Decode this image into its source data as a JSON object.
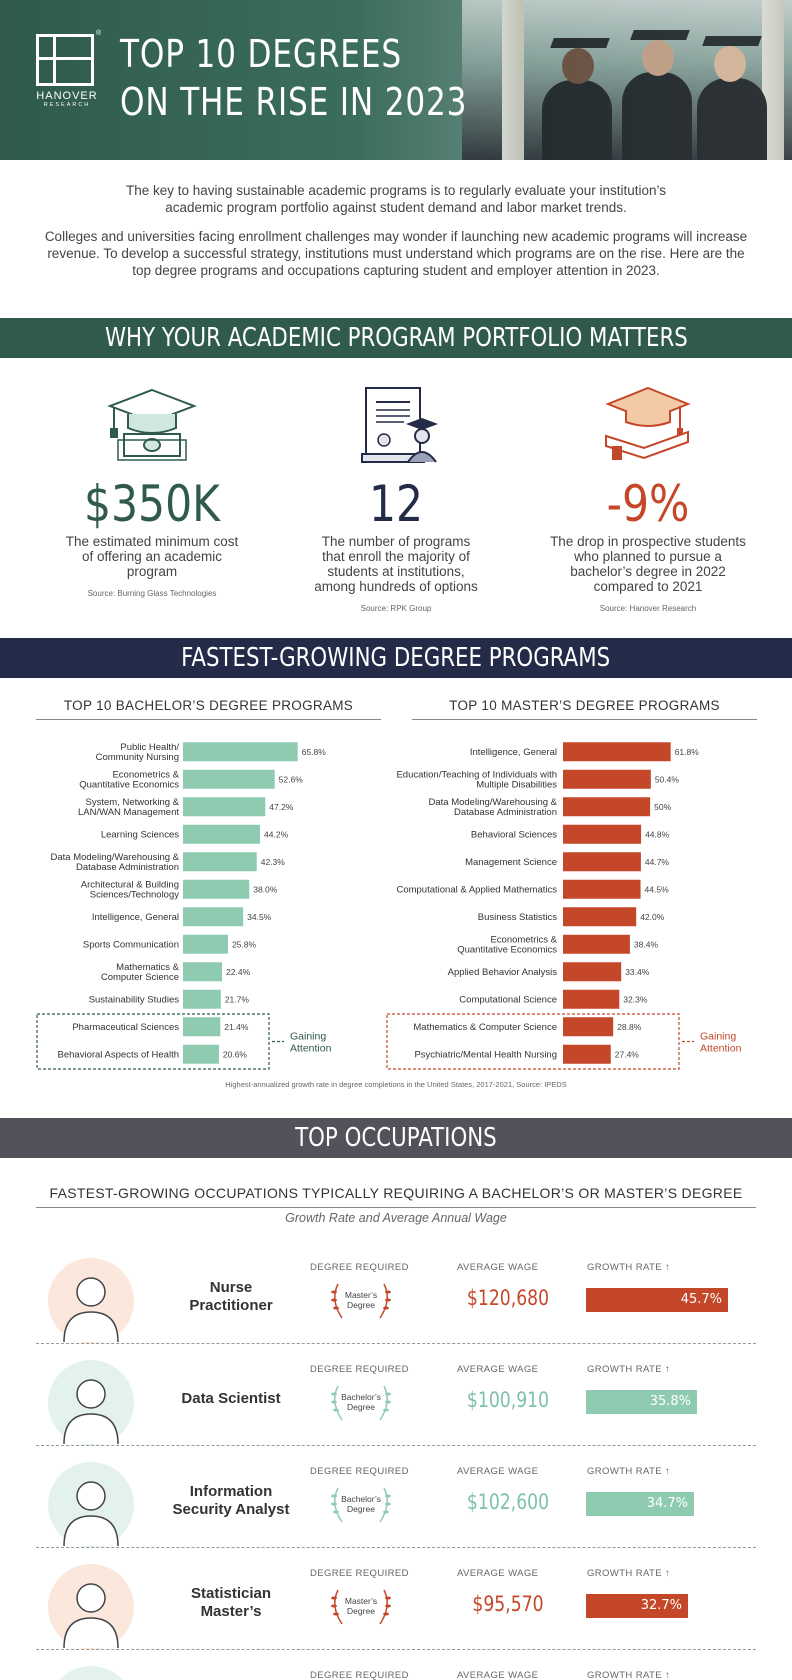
{
  "header": {
    "title_line1": "TOP 10 DEGREES",
    "title_line2": "ON THE RISE IN 2023",
    "logo_name": "HANOVER",
    "logo_sub": "RESEARCH",
    "logo_reg": "®"
  },
  "intro": {
    "p1": "The key to having sustainable academic programs is to regularly evaluate your institution’s academic program portfolio against student demand and labor market trends.",
    "p2": "Colleges and universities facing enrollment challenges may wonder if launching new academic programs will increase revenue. To develop a successful strategy, institutions must understand which programs are on the rise. Here are the top degree programs and occupations capturing student and employer attention in 2023."
  },
  "sections": {
    "why": "WHY YOUR ACADEMIC PROGRAM PORTFOLIO MATTERS",
    "fastest": "FASTEST-GROWING DEGREE PROGRAMS",
    "occupations": "TOP OCCUPATIONS"
  },
  "stats": [
    {
      "value": "$350K",
      "desc": "The estimated minimum cost of offering an academic program",
      "source": "Source: Burning Glass Technologies",
      "color": "#2f5a4d",
      "icon": "graduation-cap-money-icon"
    },
    {
      "value": "12",
      "desc": "The number of programs that enroll the majority of students at institutions, among hundreds of options",
      "source": "Source: RPK Group",
      "color": "#242b49",
      "icon": "diploma-graduate-icon"
    },
    {
      "value": "-9%",
      "desc": "The drop in prospective students who planned to pursue a bachelor’s degree in 2022 compared to 2021",
      "source": "Source: Hanover Research",
      "color": "#c5472a",
      "icon": "cap-on-book-icon"
    }
  ],
  "chart_data": [
    {
      "type": "bar",
      "title": "TOP 10 BACHELOR’S DEGREE PROGRAMS",
      "orientation": "horizontal",
      "color": "#8ecbb1",
      "categories": [
        "Public Health/|Community Nursing",
        "Econometrics &|Quantitative Economics",
        "System, Networking &|LAN/WAN Management",
        "Learning Sciences",
        "Data Modeling/Warehousing &|Database Administration",
        "Architectural & Building|Sciences/Technology",
        "Intelligence, General",
        "Sports Communication",
        "Mathematics &|Computer Science",
        "Sustainability Studies",
        "Pharmaceutical Sciences",
        "Behavioral Aspects of Health"
      ],
      "values": [
        65.8,
        52.6,
        47.2,
        44.2,
        42.3,
        38.0,
        34.5,
        25.8,
        22.4,
        21.7,
        21.4,
        20.6
      ],
      "labels": [
        "65.8%",
        "52.6%",
        "47.2%",
        "44.2%",
        "42.3%",
        "38.0%",
        "34.5%",
        "25.8%",
        "22.4%",
        "21.7%",
        "21.4%",
        "20.6%"
      ],
      "annotation": "Gaining|Attention",
      "annotation_count": 2
    },
    {
      "type": "bar",
      "title": "TOP 10 MASTER’S DEGREE PROGRAMS",
      "orientation": "horizontal",
      "color": "#c5472a",
      "categories": [
        "Intelligence, General",
        "Education/Teaching of Individuals with|Multiple Disabilities",
        "Data Modeling/Warehousing &|Database Administration",
        "Behavioral Sciences",
        "Management Science",
        "Computational & Applied Mathematics",
        "Business Statistics",
        "Econometrics &|Quantitative Economics",
        "Applied Behavior Analysis",
        "Computational Science",
        "Mathematics & Computer Science",
        "Psychiatric/Mental Health Nursing"
      ],
      "values": [
        61.8,
        50.4,
        50,
        44.8,
        44.7,
        44.5,
        42.0,
        38.4,
        33.4,
        32.3,
        28.8,
        27.4
      ],
      "labels": [
        "61.8%",
        "50.4%",
        "50%",
        "44.8%",
        "44.7%",
        "44.5%",
        "42.0%",
        "38.4%",
        "33.4%",
        "32.3%",
        "28.8%",
        "27.4%"
      ],
      "annotation": "Gaining|Attention",
      "annotation_count": 2
    }
  ],
  "chart_footnote": "Highest-annualized growth rate in degree completions in the United States, 2017-2021, Source: IPEDS",
  "occupations": {
    "heading": "FASTEST-GROWING OCCUPATIONS TYPICALLY REQUIRING A BACHELOR’S OR MASTER’S DEGREE",
    "subheading": "Growth Rate and Average Annual Wage",
    "col_degree": "DEGREE REQUIRED",
    "col_wage": "AVERAGE WAGE",
    "col_growth": "GROWTH RATE",
    "growth_max": 45.7,
    "rows": [
      {
        "title": "Nurse Practitioner",
        "degree": "Master’s Degree",
        "wage": "$120,680",
        "growth": 45.7,
        "growth_label": "45.7%",
        "color": "#c5472a",
        "icon": "nurse-icon"
      },
      {
        "title": "Data Scientist",
        "degree": "Bachelor’s Degree",
        "wage": "$100,910",
        "growth": 35.8,
        "growth_label": "35.8%",
        "color": "#8ecbb1",
        "icon": "data-scientist-icon"
      },
      {
        "title": "Information Security Analyst",
        "degree": "Bachelor’s Degree",
        "wage": "$102,600",
        "growth": 34.7,
        "growth_label": "34.7%",
        "color": "#8ecbb1",
        "icon": "security-analyst-icon"
      },
      {
        "title": "Statistician Master’s",
        "degree": "Master’s Degree",
        "wage": "$95,570",
        "growth": 32.7,
        "growth_label": "32.7%",
        "color": "#c5472a",
        "icon": "statistician-icon"
      },
      {
        "title": "",
        "degree": "",
        "wage": "",
        "growth": null,
        "growth_label": "",
        "color": "#8ecbb1",
        "icon": "person-icon"
      }
    ]
  }
}
